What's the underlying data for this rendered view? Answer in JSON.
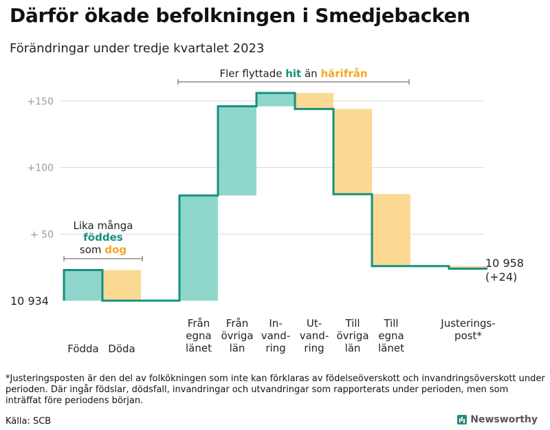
{
  "header": {
    "title": "Därför ökade befolkningen i Smedjebacken",
    "subtitle": "Förändringar under tredje kvartalet 2023"
  },
  "annotations": {
    "flytt_prefix": "Fler flyttade",
    "flytt_hit": "hit",
    "flytt_mid": "än",
    "flytt_harifran": "härifrån",
    "lika_line1": "Lika många",
    "lika_fodd": "föddes",
    "lika_som": "som",
    "lika_dog": "dog"
  },
  "start_label": "10  934",
  "end_label": {
    "value": "10 958",
    "change": "(+24)"
  },
  "footnote": "*Justeringsposten är den del av folkökningen som inte kan förklaras av födelseöverskott och invandringsöverskott under perioden. Där ingår födslar, dödsfall, invandringar och utvandringar som rapporterats under perioden, men som inträffat före periodens början.",
  "source": "Källa: SCB",
  "brand": "Newsworthy",
  "colors": {
    "increase": "#8fd6cc",
    "decrease": "#fcd993",
    "line": "#14907e",
    "accent_orange": "#f5a623",
    "grid": "#d9d9d9"
  },
  "chart_data": {
    "type": "waterfall",
    "title": "Därför ökade befolkningen i Smedjebacken",
    "base": 10934,
    "end_value": 10958,
    "yticks": [
      {
        "value": 50,
        "label": "+  50"
      },
      {
        "value": 100,
        "label": "+100"
      },
      {
        "value": 150,
        "label": "+150"
      }
    ],
    "ylim": [
      0,
      160
    ],
    "steps": [
      {
        "label": [
          "Födda"
        ],
        "change": 23
      },
      {
        "label": [
          "Döda"
        ],
        "change": -23
      },
      {
        "label": [],
        "change": 0
      },
      {
        "label": [
          "Från",
          "egna",
          "länet"
        ],
        "change": 79
      },
      {
        "label": [
          "Från",
          "övriga",
          "län"
        ],
        "change": 67
      },
      {
        "label": [
          "In-",
          "vand-",
          "ring"
        ],
        "change": 10
      },
      {
        "label": [
          "Ut-",
          "vand-",
          "ring"
        ],
        "change": -12
      },
      {
        "label": [
          "Till",
          "övriga",
          "län"
        ],
        "change": -64
      },
      {
        "label": [
          "Till",
          "egna",
          "länet"
        ],
        "change": -54
      },
      {
        "label": [],
        "change": 0
      },
      {
        "label": [
          "Justerings-",
          "post*"
        ],
        "change": -2
      }
    ]
  }
}
